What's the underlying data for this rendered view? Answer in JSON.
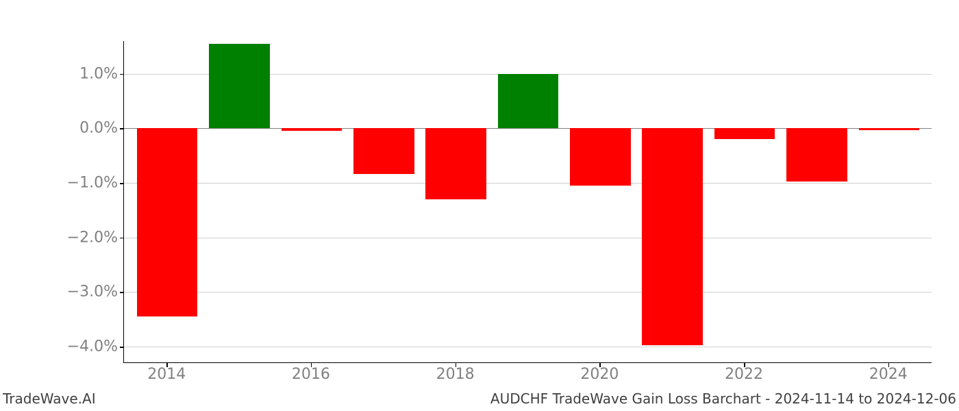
{
  "chart": {
    "type": "bar",
    "background_color": "#ffffff",
    "plot_border_color": "#000000",
    "grid_color": "#b0b0b0",
    "axis_label_color": "#808080",
    "axis_label_fontsize": 22,
    "footer_fontsize": 20,
    "footer_color": "#404040",
    "ylim": [
      -4.3,
      1.6
    ],
    "yticks": [
      -4.0,
      -3.0,
      -2.0,
      -1.0,
      0.0,
      1.0
    ],
    "ytick_labels": [
      "−4.0%",
      "−3.0%",
      "−2.0%",
      "−1.0%",
      "0.0%",
      "1.0%"
    ],
    "xticks": [
      2014,
      2016,
      2018,
      2020,
      2022,
      2024
    ],
    "xtick_labels": [
      "2014",
      "2016",
      "2018",
      "2020",
      "2022",
      "2024"
    ],
    "xlim": [
      2013.4,
      2024.6
    ],
    "bar_width_years": 0.84,
    "positive_color": "#008000",
    "negative_color": "#ff0000",
    "years": [
      2014,
      2015,
      2016,
      2017,
      2018,
      2019,
      2020,
      2021,
      2022,
      2023,
      2024
    ],
    "values": [
      -3.45,
      1.55,
      -0.05,
      -0.83,
      -1.3,
      1.0,
      -1.05,
      -3.97,
      -0.2,
      -0.97,
      -0.03
    ]
  },
  "footer": {
    "left": "TradeWave.AI",
    "right": "AUDCHF TradeWave Gain Loss Barchart - 2024-11-14 to 2024-12-06"
  }
}
